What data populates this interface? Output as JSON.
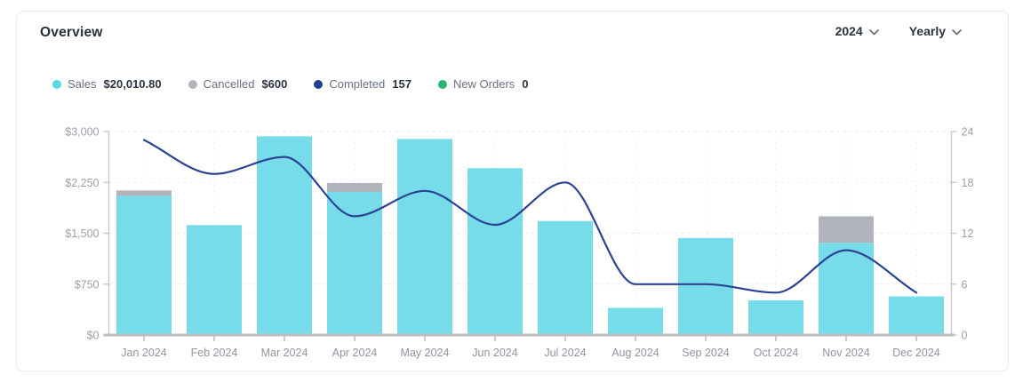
{
  "header": {
    "title": "Overview",
    "year_selector": "2024",
    "period_selector": "Yearly"
  },
  "legend": {
    "items": [
      {
        "label": "Sales",
        "value": "$20,010.80",
        "color": "#57d7e8"
      },
      {
        "label": "Cancelled",
        "value": "$600",
        "color": "#b1b5bb"
      },
      {
        "label": "Completed",
        "value": "157",
        "color": "#24408e"
      },
      {
        "label": "New Orders",
        "value": "0",
        "color": "#2ab573"
      }
    ]
  },
  "chart_data": {
    "type": "bar",
    "title": "Overview — Yearly 2024",
    "categories": [
      "Jan 2024",
      "Feb 2024",
      "Mar 2024",
      "Apr 2024",
      "May 2024",
      "Jun 2024",
      "Jul 2024",
      "Aug 2024",
      "Sep 2024",
      "Oct 2024",
      "Nov 2024",
      "Dec 2024"
    ],
    "series": [
      {
        "name": "Sales",
        "type": "bar",
        "axis": "left",
        "color": "#76dcea",
        "values": [
          2050.8,
          1620,
          2930,
          2110,
          2890,
          2460,
          1680,
          400,
          1430,
          510,
          1360,
          570
        ],
        "total": "$20,010.80"
      },
      {
        "name": "Cancelled",
        "type": "bar",
        "axis": "left",
        "stacked_on": "Sales",
        "color": "#b1b5bb",
        "values": [
          80,
          0,
          0,
          130,
          0,
          0,
          0,
          0,
          0,
          0,
          390,
          0
        ],
        "total": "$600"
      },
      {
        "name": "Completed",
        "type": "line",
        "axis": "right",
        "color": "#2b4392",
        "values": [
          23,
          19,
          21,
          14,
          17,
          13,
          18,
          6,
          6,
          5,
          10,
          5
        ],
        "total": 157
      },
      {
        "name": "New Orders",
        "type": "line",
        "axis": "right",
        "color": "#2ab573",
        "values": [
          0,
          0,
          0,
          0,
          0,
          0,
          0,
          0,
          0,
          0,
          0,
          0
        ],
        "total": 0
      }
    ],
    "left_axis": {
      "min": 0,
      "max": 3000,
      "ticks": [
        "$3,000",
        "$2,250",
        "$1,500",
        "$750",
        "$0"
      ]
    },
    "right_axis": {
      "min": 0,
      "max": 24,
      "ticks": [
        "24",
        "18",
        "12",
        "6",
        "0"
      ]
    },
    "grid": true,
    "grid_style": "dashed",
    "legend_position": "top",
    "line_style": "smooth"
  }
}
